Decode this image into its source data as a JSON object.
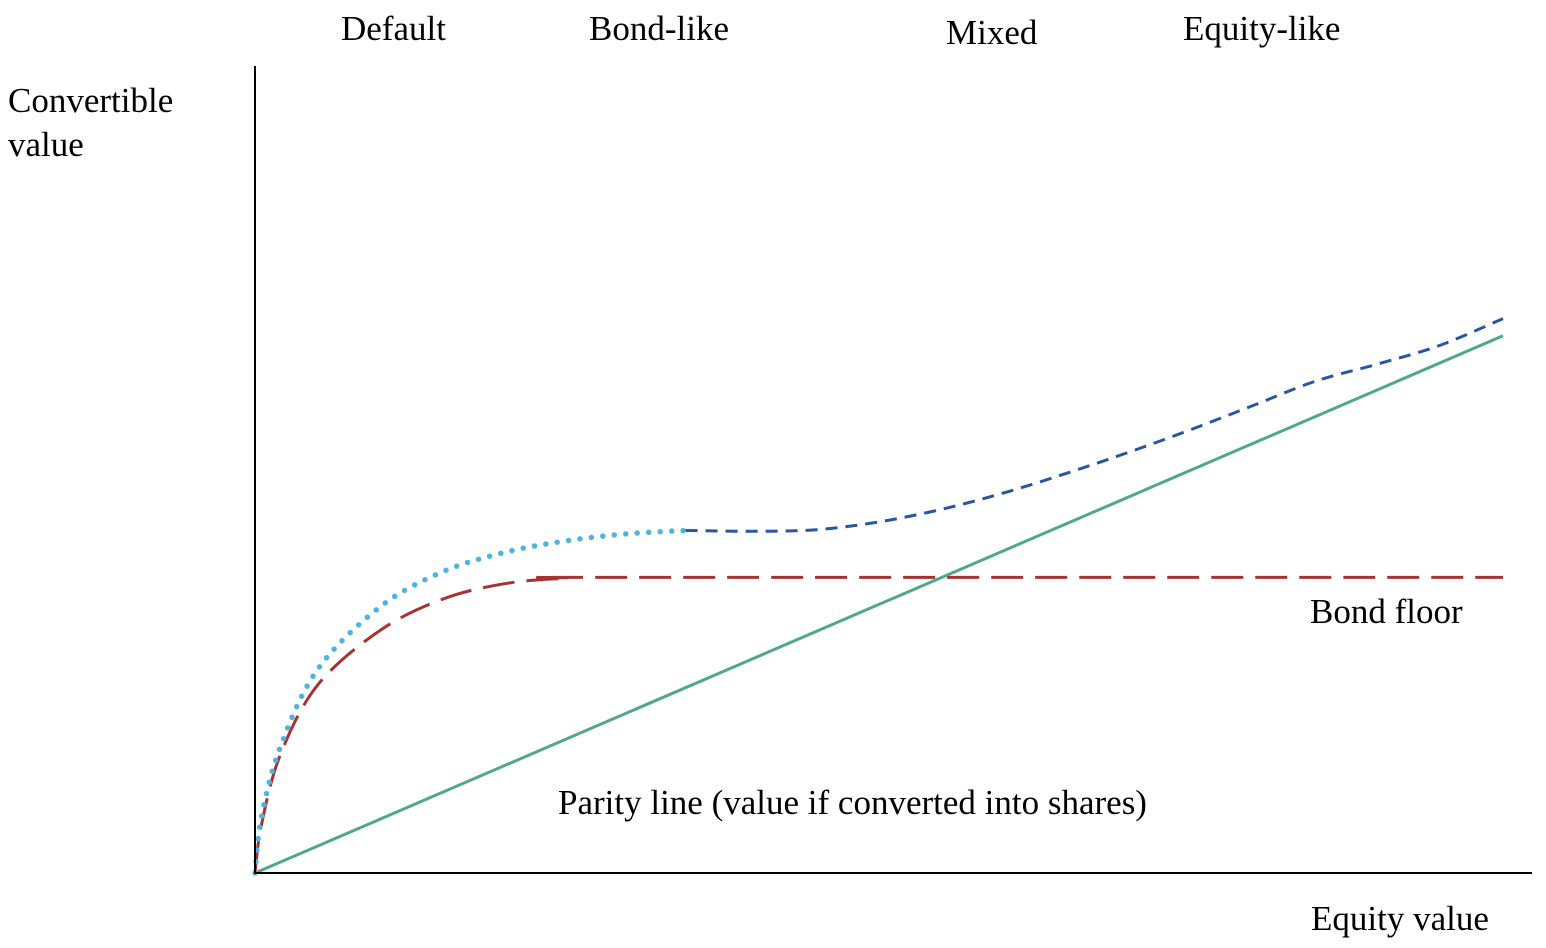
{
  "chart_data": {
    "type": "line",
    "title": "",
    "xlabel": "Equity value",
    "ylabel": "Convertible value",
    "ylabel_lines": [
      "Convertible",
      "value"
    ],
    "regions": [
      "Default",
      "Bond-like",
      "Mixed",
      "Equity-like"
    ],
    "annotations": {
      "bond_floor": "Bond floor",
      "parity_line": "Parity line (value if converted into shares)"
    },
    "series": [
      {
        "key": "parity",
        "style": "solid",
        "color": "#4fa88a",
        "x": [
          0,
          100
        ],
        "y": [
          0,
          68.7
        ]
      },
      {
        "key": "bond_floor",
        "style": "dashed",
        "color": "#a83232",
        "x": [
          0,
          0.5,
          2,
          5,
          10,
          15,
          20,
          25,
          29,
          100
        ],
        "y": [
          0,
          6,
          15,
          24,
          31,
          35,
          37,
          37.7,
          37.8,
          37.8
        ]
      },
      {
        "key": "convertible_default_bondlike",
        "style": "dotted",
        "color": "#4fb3df",
        "x": [
          0,
          0.5,
          2,
          5,
          10,
          15,
          20,
          25,
          30,
          34.5
        ],
        "y": [
          0,
          7,
          16,
          26,
          34,
          38.5,
          41,
          42.5,
          43.4,
          43.8
        ]
      },
      {
        "key": "convertible_mixed_equitylike",
        "style": "short-dashed",
        "color": "#2956a0",
        "x": [
          34.5,
          40,
          45,
          50,
          55,
          60,
          65,
          70,
          75,
          80,
          85,
          90,
          95,
          100
        ],
        "y": [
          43.8,
          43.7,
          43.9,
          44.9,
          46.5,
          48.6,
          51.1,
          53.8,
          56.7,
          59.8,
          62.9,
          65.1,
          67.5,
          70.9
        ]
      }
    ],
    "xlim": [
      0,
      100
    ],
    "ylim": [
      0,
      100
    ],
    "grid": false,
    "legend": "none"
  }
}
